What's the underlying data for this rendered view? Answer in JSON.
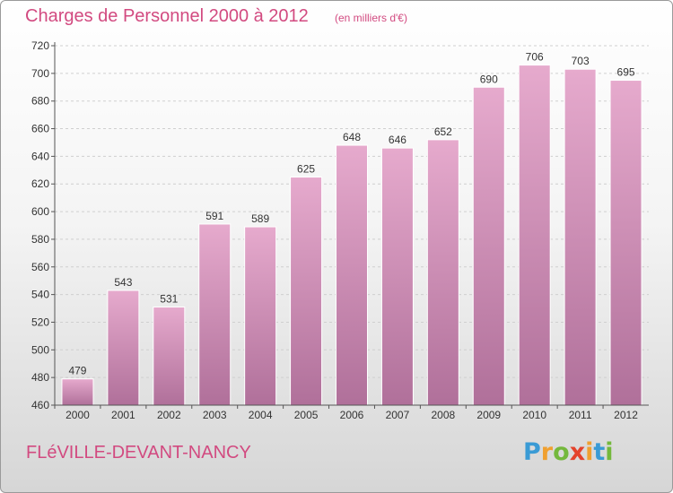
{
  "header": {
    "title": "Charges de Personnel 2000 à 2012",
    "unit": "(en milliers d'€)"
  },
  "footer": {
    "commune": "FLéVILLE-DEVANT-NANCY",
    "logo_letters": [
      "P",
      "r",
      "o",
      "x",
      "i",
      "t",
      "i"
    ],
    "logo_colors": [
      "#3a9bd5",
      "#f0a030",
      "#74b83c",
      "#e4432c",
      "#f0a030",
      "#3a9bd5",
      "#74b83c"
    ]
  },
  "colors": {
    "bar_light": "#e6aacd",
    "bar_dark": "#b0709a",
    "text_accent": "#d24a80",
    "grid": "#cfcfcf"
  },
  "chart_data": {
    "type": "bar",
    "categories": [
      "2000",
      "2001",
      "2002",
      "2003",
      "2004",
      "2005",
      "2006",
      "2007",
      "2008",
      "2009",
      "2010",
      "2011",
      "2012"
    ],
    "values": [
      479,
      543,
      531,
      591,
      589,
      625,
      648,
      646,
      652,
      690,
      706,
      703,
      695
    ],
    "title": "Charges de Personnel 2000 à 2012",
    "ylim": [
      460,
      720
    ],
    "yticks": [
      460,
      480,
      500,
      520,
      540,
      560,
      580,
      600,
      620,
      640,
      660,
      680,
      700,
      720
    ],
    "grid": true
  }
}
